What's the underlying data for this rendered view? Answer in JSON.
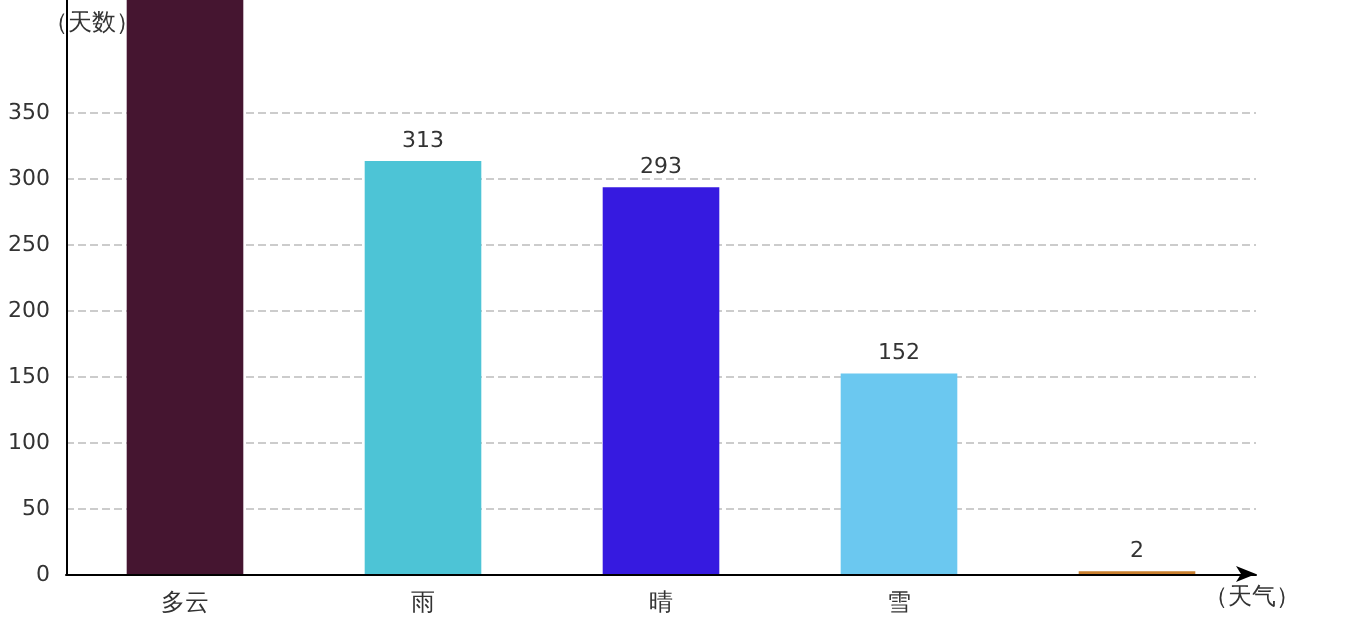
{
  "chart_data": {
    "type": "bar",
    "xlabel": "（天气）",
    "ylabel": "（天数）",
    "categories": [
      "多云",
      "雨",
      "晴",
      "雪",
      null
    ],
    "values": [
      435,
      313,
      293,
      152,
      2
    ],
    "value_labels": [
      null,
      "313",
      "293",
      "152",
      "2"
    ],
    "colors": [
      "#451530",
      "#4dc4d6",
      "#361ae0",
      "#6bc8f0",
      "#c97f2e"
    ],
    "ylim": [
      0,
      435
    ],
    "yticks": [
      0,
      50,
      100,
      150,
      200,
      250,
      300,
      350
    ],
    "grid": "y"
  }
}
